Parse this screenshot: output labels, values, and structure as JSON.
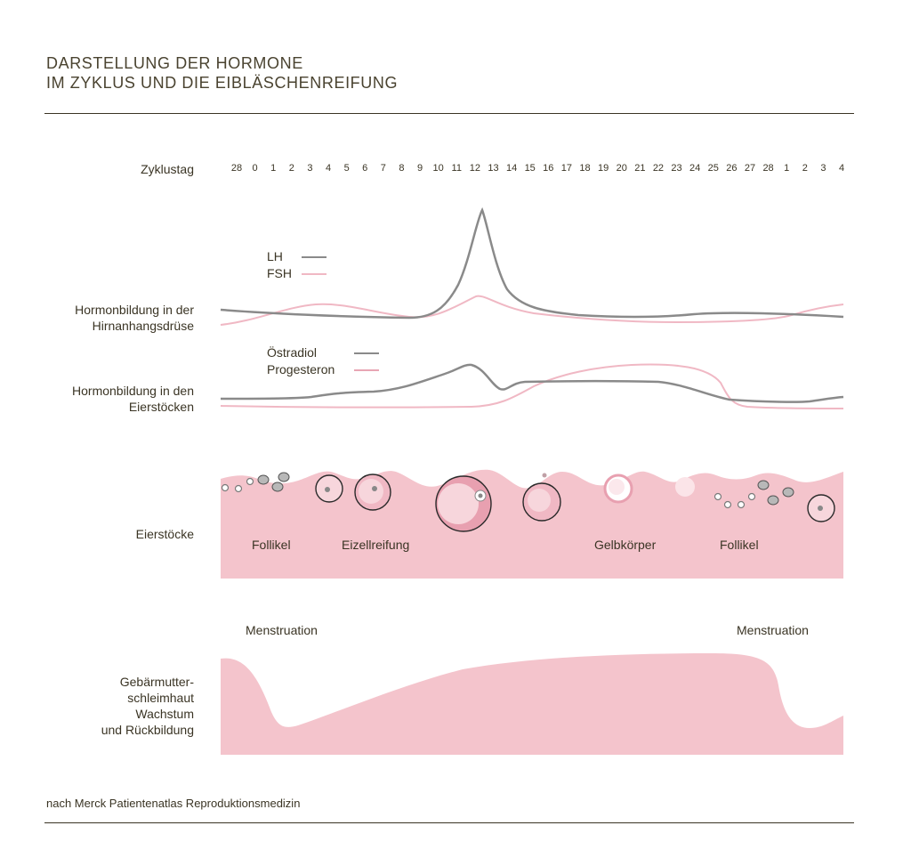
{
  "title": {
    "line1": "DARSTELLUNG DER HORMONE",
    "line2": "IM ZYKLUS UND DIE EIBLÄSCHENREIFUNG"
  },
  "days": {
    "label": "Zyklustag",
    "values": [
      "28",
      "0",
      "1",
      "2",
      "3",
      "4",
      "5",
      "6",
      "7",
      "8",
      "9",
      "10",
      "11",
      "12",
      "13",
      "14",
      "15",
      "16",
      "17",
      "18",
      "19",
      "20",
      "21",
      "22",
      "23",
      "24",
      "25",
      "26",
      "27",
      "28",
      "1",
      "2",
      "3",
      "4"
    ]
  },
  "pituitary": {
    "label_line1": "Hormonbildung in der",
    "label_line2": "Hirnanhangsdrüse",
    "legend": [
      {
        "name": "LH",
        "color": "#8a8a8a"
      },
      {
        "name": "FSH",
        "color": "#f0b8c4"
      }
    ]
  },
  "ovary_hormones": {
    "label_line1": "Hormonbildung in den",
    "label_line2": "Eierstöcken",
    "legend": [
      {
        "name": "Östradiol",
        "color": "#8a8a8a"
      },
      {
        "name": "Progesteron",
        "color": "#e8a6b4"
      }
    ]
  },
  "ovaries": {
    "label": "Eierstöcke",
    "labels": [
      "Follikel",
      "Eizellreifung",
      "Gelbkörper",
      "Follikel"
    ]
  },
  "uterus": {
    "label_lines": [
      "Gebärmutter-",
      "schleimhaut",
      "Wachstum",
      "und Rückbildung"
    ],
    "menstruation_left": "Menstruation",
    "menstruation_right": "Menstruation"
  },
  "source": "nach Merck Patientenatlas Reproduktionsmedizin",
  "colors": {
    "band_pink": "#f4c4cc",
    "gray_line": "#8a8a8a",
    "pink_line": "#f0b8c4",
    "text": "#3a3424"
  }
}
